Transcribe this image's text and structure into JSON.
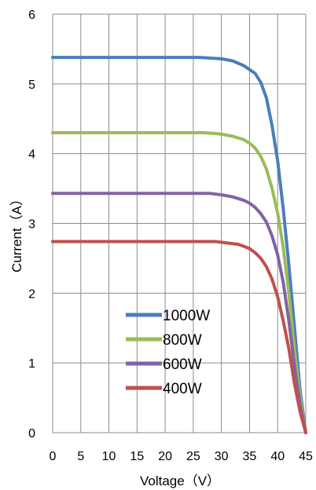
{
  "chart_data": {
    "type": "line",
    "title": "",
    "xlabel": "Voltage（V）",
    "ylabel": "Current（A）",
    "xlim": [
      0,
      45
    ],
    "ylim": [
      0,
      6
    ],
    "xticks": [
      0,
      5,
      10,
      15,
      20,
      25,
      30,
      35,
      40,
      45
    ],
    "yticks": [
      0,
      1,
      2,
      3,
      4,
      5,
      6
    ],
    "grid": true,
    "legend_position": "lower-left",
    "series": [
      {
        "name": "1000W",
        "color": "#4a7ebb",
        "x": [
          0,
          26,
          30,
          32,
          34,
          36,
          37,
          38,
          39,
          40,
          41,
          42,
          43,
          44,
          45
        ],
        "y": [
          5.38,
          5.38,
          5.36,
          5.33,
          5.26,
          5.15,
          5.02,
          4.8,
          4.4,
          3.9,
          3.2,
          2.4,
          1.5,
          0.6,
          0
        ]
      },
      {
        "name": "800W",
        "color": "#9bbb59",
        "x": [
          0,
          27,
          30,
          32,
          34,
          35,
          36,
          37,
          38,
          39,
          40,
          41,
          42,
          43,
          44,
          45
        ],
        "y": [
          4.3,
          4.3,
          4.28,
          4.25,
          4.2,
          4.15,
          4.08,
          3.96,
          3.78,
          3.5,
          3.15,
          2.65,
          2.0,
          1.2,
          0.5,
          0
        ]
      },
      {
        "name": "600W",
        "color": "#8064a2",
        "x": [
          0,
          28,
          30,
          32,
          34,
          35,
          36,
          37,
          38,
          39,
          40,
          41,
          42,
          43,
          44,
          45
        ],
        "y": [
          3.43,
          3.43,
          3.41,
          3.38,
          3.33,
          3.29,
          3.23,
          3.14,
          3.02,
          2.82,
          2.55,
          2.15,
          1.6,
          0.95,
          0.4,
          0
        ]
      },
      {
        "name": "400W",
        "color": "#c0504d",
        "x": [
          0,
          29,
          31,
          33,
          34,
          35,
          36,
          37,
          38,
          39,
          40,
          41,
          42,
          43,
          44,
          45
        ],
        "y": [
          2.74,
          2.74,
          2.72,
          2.7,
          2.67,
          2.64,
          2.58,
          2.5,
          2.38,
          2.2,
          1.95,
          1.6,
          1.2,
          0.7,
          0.3,
          0
        ]
      }
    ]
  }
}
